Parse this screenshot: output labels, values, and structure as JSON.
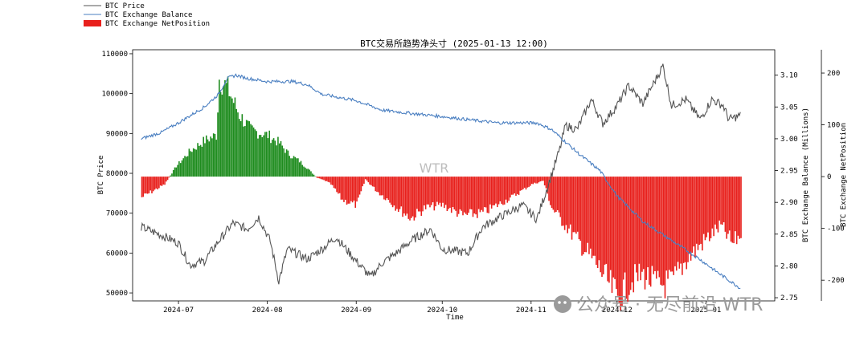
{
  "chart_data": {
    "type": "line",
    "title": "BTC交易所趋势净头寸 (2025-01-13 12:00)",
    "xlabel": "Time",
    "x_ticks": [
      "2024-07",
      "2024-08",
      "2024-09",
      "2024-10",
      "2024-11",
      "2024-12",
      "2025-01"
    ],
    "x_range": [
      "2024-06-15",
      "2025-01-25"
    ],
    "y_left": {
      "label": "BTC Price",
      "range": [
        48000,
        111000
      ],
      "ticks": [
        "50000",
        "60000",
        "70000",
        "80000",
        "90000",
        "100000",
        "110000"
      ]
    },
    "y_right1": {
      "label": "BTC Exchange Balance (Millions)",
      "range": [
        2.745,
        3.14
      ],
      "ticks": [
        "2.75",
        "2.80",
        "2.85",
        "2.90",
        "2.95",
        "3.00",
        "3.05",
        "3.10"
      ]
    },
    "y_right2": {
      "label": "BTC Exchange NetPosition",
      "range": [
        -240,
        245
      ],
      "ticks": [
        "-200",
        "-100",
        "0",
        "100",
        "200"
      ]
    },
    "legend": {
      "position": "top-left",
      "items": [
        {
          "label": "BTC Price",
          "color": "#555555",
          "kind": "line"
        },
        {
          "label": "BTC Exchange Balance",
          "color": "#4a7fc1",
          "kind": "line"
        },
        {
          "label": "BTC Exchange NetPosition",
          "color": "#e8201c",
          "kind": "patch"
        }
      ]
    },
    "watermarks": {
      "center": "WTR",
      "corner": "公众号 · 无尽前沿 WTR"
    },
    "colors": {
      "price": "#555555",
      "balance": "#4a7fc1",
      "positive": "#1e8c1e",
      "negative": "#e8201c"
    },
    "series": [
      {
        "name": "BTC Price",
        "axis": "left",
        "x": [
          "2024-06-18",
          "2024-06-25",
          "2024-07-01",
          "2024-07-05",
          "2024-07-10",
          "2024-07-15",
          "2024-07-20",
          "2024-07-25",
          "2024-07-29",
          "2024-08-02",
          "2024-08-05",
          "2024-08-08",
          "2024-08-15",
          "2024-08-20",
          "2024-08-25",
          "2024-09-01",
          "2024-09-06",
          "2024-09-10",
          "2024-09-15",
          "2024-09-20",
          "2024-09-27",
          "2024-10-01",
          "2024-10-10",
          "2024-10-15",
          "2024-10-21",
          "2024-10-29",
          "2024-11-03",
          "2024-11-06",
          "2024-11-11",
          "2024-11-13",
          "2024-11-17",
          "2024-11-22",
          "2024-11-26",
          "2024-12-01",
          "2024-12-05",
          "2024-12-10",
          "2024-12-17",
          "2024-12-20",
          "2024-12-25",
          "2024-12-30",
          "2025-01-03",
          "2025-01-07",
          "2025-01-09",
          "2025-01-13"
        ],
        "y": [
          66500,
          64500,
          62500,
          57000,
          58000,
          63000,
          67500,
          66000,
          69000,
          63000,
          53000,
          61000,
          58500,
          61000,
          64000,
          58000,
          54000,
          57500,
          60000,
          63000,
          66000,
          61000,
          60000,
          66500,
          69000,
          72000,
          68500,
          75000,
          86000,
          92000,
          91000,
          98500,
          92500,
          97000,
          102000,
          97500,
          107000,
          97000,
          98500,
          93500,
          98500,
          97000,
          93500,
          94500
        ]
      },
      {
        "name": "BTC Exchange Balance",
        "axis": "right1",
        "x": [
          "2024-06-18",
          "2024-06-25",
          "2024-07-01",
          "2024-07-10",
          "2024-07-15",
          "2024-07-18",
          "2024-07-21",
          "2024-07-25",
          "2024-08-01",
          "2024-08-10",
          "2024-08-15",
          "2024-08-20",
          "2024-09-01",
          "2024-09-10",
          "2024-09-20",
          "2024-10-01",
          "2024-10-10",
          "2024-10-20",
          "2024-10-25",
          "2024-11-03",
          "2024-11-08",
          "2024-11-13",
          "2024-11-18",
          "2024-11-25",
          "2024-12-01",
          "2024-12-10",
          "2024-12-20",
          "2024-12-30",
          "2025-01-05",
          "2025-01-13"
        ],
        "y": [
          3.0,
          3.01,
          3.025,
          3.05,
          3.07,
          3.095,
          3.1,
          3.095,
          3.09,
          3.09,
          3.085,
          3.07,
          3.06,
          3.045,
          3.04,
          3.035,
          3.03,
          3.025,
          3.025,
          3.025,
          3.015,
          2.995,
          2.975,
          2.95,
          2.91,
          2.87,
          2.84,
          2.81,
          2.79,
          2.765
        ]
      },
      {
        "name": "BTC Exchange NetPosition",
        "axis": "right2",
        "kind": "bars",
        "x": [
          "2024-06-18",
          "2024-06-26",
          "2024-06-30",
          "2024-07-05",
          "2024-07-10",
          "2024-07-14",
          "2024-07-15",
          "2024-07-18",
          "2024-07-22",
          "2024-07-26",
          "2024-08-01",
          "2024-08-05",
          "2024-08-08",
          "2024-08-12",
          "2024-08-15",
          "2024-08-18",
          "2024-08-21",
          "2024-08-23",
          "2024-08-27",
          "2024-09-01",
          "2024-09-04",
          "2024-09-08",
          "2024-09-12",
          "2024-09-15",
          "2024-09-20",
          "2024-09-25",
          "2024-10-01",
          "2024-10-08",
          "2024-10-15",
          "2024-10-20",
          "2024-10-25",
          "2024-11-01",
          "2024-11-05",
          "2024-11-08",
          "2024-11-13",
          "2024-11-18",
          "2024-11-25",
          "2024-12-01",
          "2024-12-06",
          "2024-12-10",
          "2024-12-15",
          "2024-12-20",
          "2024-12-25",
          "2025-01-01",
          "2025-01-06",
          "2025-01-10",
          "2025-01-13"
        ],
        "y": [
          -40,
          -15,
          20,
          50,
          70,
          80,
          190,
          170,
          120,
          90,
          80,
          65,
          45,
          30,
          15,
          -2,
          -8,
          -15,
          -45,
          -55,
          -5,
          -28,
          -45,
          -60,
          -80,
          -60,
          -55,
          -75,
          -70,
          -55,
          -40,
          -15,
          -8,
          -60,
          -95,
          -130,
          -180,
          -235,
          -200,
          -190,
          -210,
          -205,
          -160,
          -120,
          -95,
          -130,
          -110
        ]
      }
    ]
  }
}
